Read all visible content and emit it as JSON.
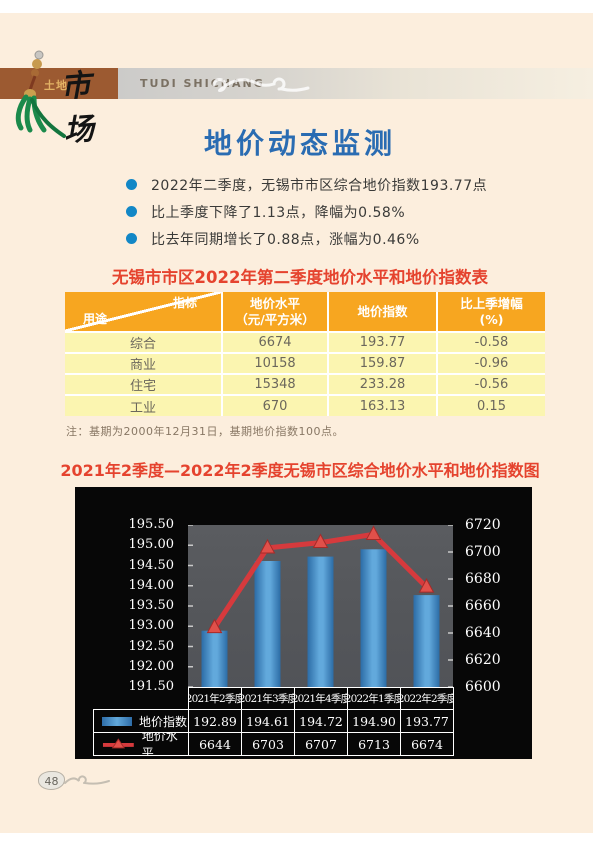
{
  "page": {
    "header": {
      "logo_prefix": "土地",
      "logo_main": "市场",
      "logo_en": "TUDI SHICHANG"
    },
    "title": "地价动态监测",
    "bullets": [
      "2022年二季度，无锡市市区综合地价指数193.77点",
      "比上季度下降了1.13点，降幅为0.58%",
      "比去年同期增长了0.88点，涨幅为0.46%"
    ],
    "table": {
      "title": "无锡市市区2022年第二季度地价水平和地价指数表",
      "corner_top": "指标",
      "corner_bottom": "用途",
      "col_price_line1": "地价水平",
      "col_price_line2": "（元/平方米）",
      "col_index": "地价指数",
      "col_change_line1": "比上季增幅",
      "col_change_line2": "(%)",
      "rows": [
        {
          "use": "综合",
          "price": "6674",
          "index": "193.77",
          "change": "-0.58"
        },
        {
          "use": "商业",
          "price": "10158",
          "index": "159.87",
          "change": "-0.96"
        },
        {
          "use": "住宅",
          "price": "15348",
          "index": "233.28",
          "change": "-0.56"
        },
        {
          "use": "工业",
          "price": "670",
          "index": "163.13",
          "change": "0.15"
        }
      ],
      "note": "注：基期为2000年12月31日，基期地价指数100点。"
    },
    "chart_title": "2021年2季度—2022年2季度无锡市区综合地价水平和地价指数图",
    "page_number": "48"
  },
  "chart_data": {
    "type": "bar",
    "title": "2021年2季度—2022年2季度无锡市区综合地价水平和地价指数图",
    "categories": [
      "2021年2季度",
      "2021年3季度",
      "2021年4季度",
      "2022年1季度",
      "2022年2季度"
    ],
    "series": [
      {
        "name": "地价指数",
        "type": "bar",
        "axis": "left",
        "color": "#3f8dca",
        "values": [
          192.89,
          194.61,
          194.72,
          194.9,
          193.77
        ]
      },
      {
        "name": "地价水平",
        "type": "line",
        "axis": "right",
        "color": "#d63a3d",
        "values": [
          6644,
          6703,
          6707,
          6713,
          6674
        ]
      }
    ],
    "left_axis": {
      "min": 191.5,
      "max": 195.5,
      "step": 0.5,
      "ticks": [
        "195.50",
        "195.00",
        "194.50",
        "194.00",
        "193.50",
        "193.00",
        "192.50",
        "192.00",
        "191.50"
      ]
    },
    "right_axis": {
      "min": 6600,
      "max": 6720,
      "step": 20,
      "ticks": [
        "6720",
        "6700",
        "6680",
        "6660",
        "6640",
        "6620",
        "6600"
      ]
    },
    "legend_position": "table-below",
    "grid": false
  }
}
